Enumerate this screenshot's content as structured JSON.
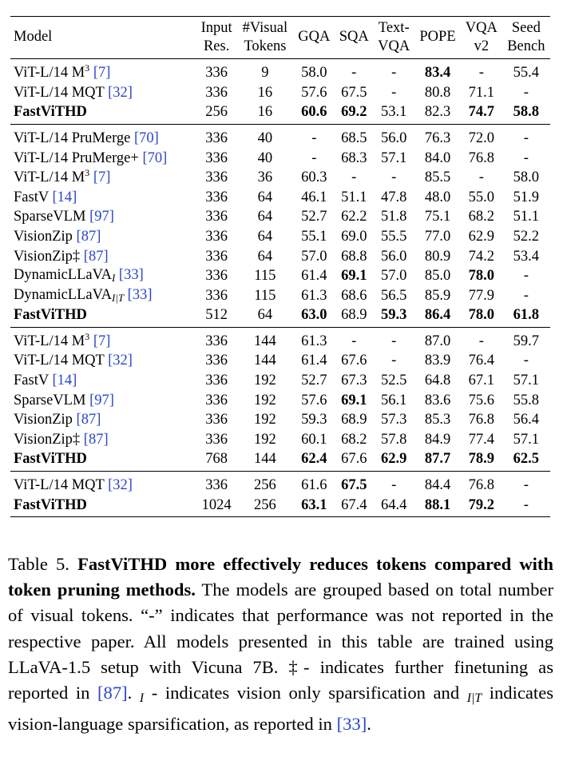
{
  "table": {
    "headers": [
      {
        "key": "model",
        "lines": [
          "Model"
        ]
      },
      {
        "key": "res",
        "lines": [
          "Input",
          "Res."
        ]
      },
      {
        "key": "tokens",
        "lines": [
          "#Visual",
          "Tokens"
        ]
      },
      {
        "key": "gqa",
        "lines": [
          "GQA"
        ]
      },
      {
        "key": "sqa",
        "lines": [
          "SQA"
        ]
      },
      {
        "key": "textvqa",
        "lines": [
          "Text-",
          "VQA"
        ]
      },
      {
        "key": "pope",
        "lines": [
          "POPE"
        ]
      },
      {
        "key": "vqav2",
        "lines": [
          "VQA",
          "v2"
        ]
      },
      {
        "key": "seed",
        "lines": [
          "Seed",
          "Bench"
        ]
      }
    ],
    "groups": [
      [
        {
          "model": "ViT-L/14 M",
          "sup": "3",
          "cite": "[7]",
          "res": "336",
          "tokens": "9",
          "gqa": "58.0",
          "sqa": "-",
          "textvqa": "-",
          "pope": "83.4",
          "vqav2": "-",
          "seed": "55.4",
          "bold_cols": [
            "pope"
          ]
        },
        {
          "model": "ViT-L/14 MQT",
          "cite": "[32]",
          "res": "336",
          "tokens": "16",
          "gqa": "57.6",
          "sqa": "67.5",
          "textvqa": "-",
          "pope": "80.8",
          "vqav2": "71.1",
          "seed": "-",
          "bold_cols": []
        },
        {
          "model": "FastViTHD",
          "res": "256",
          "tokens": "16",
          "gqa": "60.6",
          "sqa": "69.2",
          "textvqa": "53.1",
          "pope": "82.3",
          "vqav2": "74.7",
          "seed": "58.8",
          "bold_model": true,
          "bold_cols": [
            "gqa",
            "sqa",
            "vqav2",
            "seed"
          ]
        }
      ],
      [
        {
          "model": "ViT-L/14 PruMerge",
          "cite": "[70]",
          "res": "336",
          "tokens": "40",
          "gqa": "-",
          "sqa": "68.5",
          "textvqa": "56.0",
          "pope": "76.3",
          "vqav2": "72.0",
          "seed": "-",
          "bold_cols": []
        },
        {
          "model": "ViT-L/14 PruMerge+",
          "cite": "[70]",
          "res": "336",
          "tokens": "40",
          "gqa": "-",
          "sqa": "68.3",
          "textvqa": "57.1",
          "pope": "84.0",
          "vqav2": "76.8",
          "seed": "-",
          "bold_cols": []
        },
        {
          "model": "ViT-L/14 M",
          "sup": "3",
          "cite": "[7]",
          "res": "336",
          "tokens": "36",
          "gqa": "60.3",
          "sqa": "-",
          "textvqa": "-",
          "pope": "85.5",
          "vqav2": "-",
          "seed": "58.0",
          "bold_cols": []
        },
        {
          "model": "FastV",
          "cite": "[14]",
          "res": "336",
          "tokens": "64",
          "gqa": "46.1",
          "sqa": "51.1",
          "textvqa": "47.8",
          "pope": "48.0",
          "vqav2": "55.0",
          "seed": "51.9",
          "bold_cols": []
        },
        {
          "model": "SparseVLM",
          "cite": "[97]",
          "res": "336",
          "tokens": "64",
          "gqa": "52.7",
          "sqa": "62.2",
          "textvqa": "51.8",
          "pope": "75.1",
          "vqav2": "68.2",
          "seed": "51.1",
          "bold_cols": []
        },
        {
          "model": "VisionZip",
          "cite": "[87]",
          "res": "336",
          "tokens": "64",
          "gqa": "55.1",
          "sqa": "69.0",
          "textvqa": "55.5",
          "pope": "77.0",
          "vqav2": "62.9",
          "seed": "52.2",
          "bold_cols": []
        },
        {
          "model": "VisionZip‡",
          "cite": "[87]",
          "res": "336",
          "tokens": "64",
          "gqa": "57.0",
          "sqa": "68.8",
          "textvqa": "56.0",
          "pope": "80.9",
          "vqav2": "74.2",
          "seed": "53.4",
          "bold_cols": []
        },
        {
          "model": "DynamicLLaVA",
          "sub": "I",
          "cite": "[33]",
          "res": "336",
          "tokens": "115",
          "gqa": "61.4",
          "sqa": "69.1",
          "textvqa": "57.0",
          "pope": "85.0",
          "vqav2": "78.0",
          "seed": "-",
          "bold_cols": [
            "sqa",
            "vqav2"
          ]
        },
        {
          "model": "DynamicLLaVA",
          "sub": "I|T",
          "cite": "[33]",
          "res": "336",
          "tokens": "115",
          "gqa": "61.3",
          "sqa": "68.6",
          "textvqa": "56.5",
          "pope": "85.9",
          "vqav2": "77.9",
          "seed": "-",
          "bold_cols": []
        },
        {
          "model": "FastViTHD",
          "res": "512",
          "tokens": "64",
          "gqa": "63.0",
          "sqa": "68.9",
          "textvqa": "59.3",
          "pope": "86.4",
          "vqav2": "78.0",
          "seed": "61.8",
          "bold_model": true,
          "bold_cols": [
            "gqa",
            "textvqa",
            "pope",
            "vqav2",
            "seed"
          ]
        }
      ],
      [
        {
          "model": "ViT-L/14 M",
          "sup": "3",
          "cite": "[7]",
          "res": "336",
          "tokens": "144",
          "gqa": "61.3",
          "sqa": "-",
          "textvqa": "-",
          "pope": "87.0",
          "vqav2": "-",
          "seed": "59.7",
          "bold_cols": []
        },
        {
          "model": "ViT-L/14 MQT",
          "cite": "[32]",
          "res": "336",
          "tokens": "144",
          "gqa": "61.4",
          "sqa": "67.6",
          "textvqa": "-",
          "pope": "83.9",
          "vqav2": "76.4",
          "seed": "-",
          "bold_cols": []
        },
        {
          "model": "FastV",
          "cite": "[14]",
          "res": "336",
          "tokens": "192",
          "gqa": "52.7",
          "sqa": "67.3",
          "textvqa": "52.5",
          "pope": "64.8",
          "vqav2": "67.1",
          "seed": "57.1",
          "bold_cols": []
        },
        {
          "model": "SparseVLM",
          "cite": "[97]",
          "res": "336",
          "tokens": "192",
          "gqa": "57.6",
          "sqa": "69.1",
          "textvqa": "56.1",
          "pope": "83.6",
          "vqav2": "75.6",
          "seed": "55.8",
          "bold_cols": [
            "sqa"
          ]
        },
        {
          "model": "VisionZip",
          "cite": "[87]",
          "res": "336",
          "tokens": "192",
          "gqa": "59.3",
          "sqa": "68.9",
          "textvqa": "57.3",
          "pope": "85.3",
          "vqav2": "76.8",
          "seed": "56.4",
          "bold_cols": []
        },
        {
          "model": "VisionZip‡",
          "cite": "[87]",
          "res": "336",
          "tokens": "192",
          "gqa": "60.1",
          "sqa": "68.2",
          "textvqa": "57.8",
          "pope": "84.9",
          "vqav2": "77.4",
          "seed": "57.1",
          "bold_cols": []
        },
        {
          "model": "FastViTHD",
          "res": "768",
          "tokens": "144",
          "gqa": "62.4",
          "sqa": "67.6",
          "textvqa": "62.9",
          "pope": "87.7",
          "vqav2": "78.9",
          "seed": "62.5",
          "bold_model": true,
          "bold_cols": [
            "gqa",
            "textvqa",
            "pope",
            "vqav2",
            "seed"
          ]
        }
      ],
      [
        {
          "model": "ViT-L/14 MQT",
          "cite": "[32]",
          "res": "336",
          "tokens": "256",
          "gqa": "61.6",
          "sqa": "67.5",
          "textvqa": "-",
          "pope": "84.4",
          "vqav2": "76.8",
          "seed": "-",
          "bold_cols": [
            "sqa"
          ]
        },
        {
          "model": "FastViTHD",
          "res": "1024",
          "tokens": "256",
          "gqa": "63.1",
          "sqa": "67.4",
          "textvqa": "64.4",
          "pope": "88.1",
          "vqav2": "79.2",
          "seed": "-",
          "bold_model": true,
          "bold_cols": [
            "gqa",
            "pope",
            "vqav2"
          ]
        }
      ]
    ]
  },
  "caption": {
    "label": "Table 5.",
    "title": "FastViTHD more effectively reduces tokens compared with token pruning methods.",
    "text_1": "The models are grouped based on total number of visual tokens. “-” indicates that performance was not reported in the respective paper. All models presented in this table are trained using LLaVA-1.5 setup with Vicuna 7B. ‡- indicates further finetuning as reported in",
    "cite_1": "[87]",
    "text_2": ".",
    "sub_1": "I",
    "text_3": "- indicates vision only sparsification and",
    "sub_2": "I|T",
    "text_4": "indicates vision-language sparsification, as reported in",
    "cite_2": "[33]",
    "text_5": "."
  }
}
